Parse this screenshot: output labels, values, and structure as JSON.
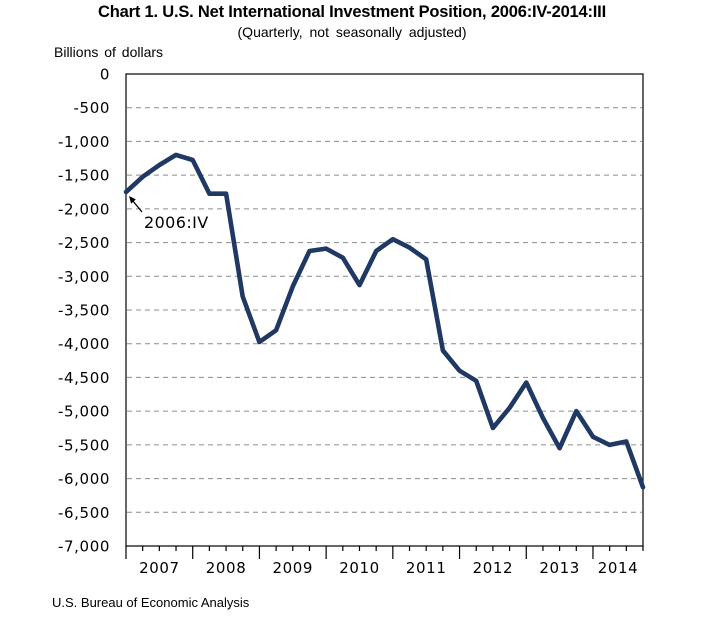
{
  "header": {
    "title": "Chart 1. U.S. Net International Investment Position, 2006:IV-2014:III",
    "subtitle": "(Quarterly,  not seasonally  adjusted)",
    "unit_label": "Billions  of dollars"
  },
  "footer": {
    "source": "U.S. Bureau of Economic Analysis"
  },
  "chart_data": {
    "type": "line",
    "title": "Chart 1. U.S. Net International Investment Position, 2006:IV-2014:III",
    "subtitle": "(Quarterly, not seasonally adjusted)",
    "ylabel": "Billions of dollars",
    "ylim": [
      -7000,
      0
    ],
    "ytick_interval": 500,
    "ytick_labels": [
      "0",
      "-500",
      "-1,000",
      "-1,500",
      "-2,000",
      "-2,500",
      "-3,000",
      "-3,500",
      "-4,000",
      "-4,500",
      "-5,000",
      "-5,500",
      "-6,000",
      "-6,500",
      "-7,000"
    ],
    "x_year_labels": [
      "2007",
      "2008",
      "2009",
      "2010",
      "2011",
      "2012",
      "2013",
      "2014"
    ],
    "grid": "horizontal-dashed",
    "legend": "none",
    "line_color": "#1f3864",
    "gridline_color": "#8c8c8c",
    "axis_color": "#000000",
    "x": [
      "2006:IV",
      "2007:I",
      "2007:II",
      "2007:III",
      "2007:IV",
      "2008:I",
      "2008:II",
      "2008:III",
      "2008:IV",
      "2009:I",
      "2009:II",
      "2009:III",
      "2009:IV",
      "2010:I",
      "2010:II",
      "2010:III",
      "2010:IV",
      "2011:I",
      "2011:II",
      "2011:III",
      "2011:IV",
      "2012:I",
      "2012:II",
      "2012:III",
      "2012:IV",
      "2013:I",
      "2013:II",
      "2013:III",
      "2013:IV",
      "2014:I",
      "2014:II",
      "2014:III"
    ],
    "values": [
      -1750,
      -1525,
      -1350,
      -1200,
      -1275,
      -1775,
      -1775,
      -3300,
      -3975,
      -3800,
      -3150,
      -2625,
      -2590,
      -2725,
      -3130,
      -2625,
      -2450,
      -2575,
      -2750,
      -4100,
      -4400,
      -4550,
      -5250,
      -4950,
      -4575,
      -5100,
      -5550,
      -5000,
      -5380,
      -5500,
      -5450,
      -6130
    ],
    "annotation": {
      "text": "2006:IV",
      "target_quarter": "2006:IV",
      "target_value": -1750
    }
  }
}
